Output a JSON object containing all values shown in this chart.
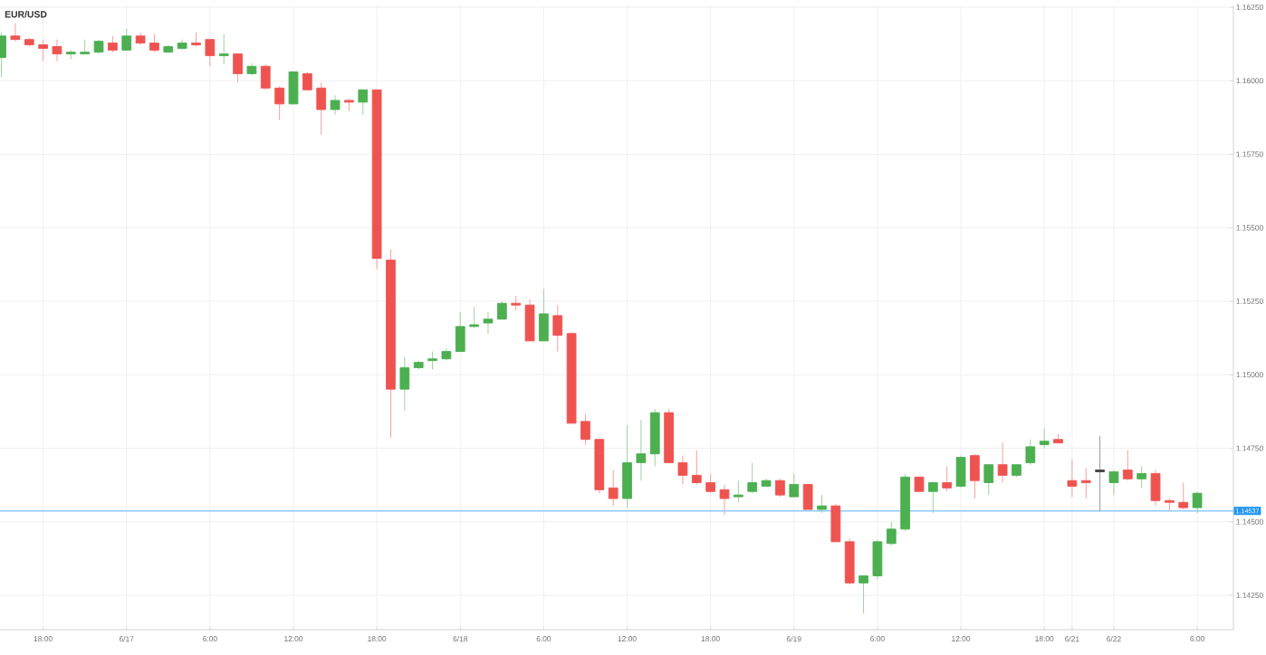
{
  "chart_data": {
    "type": "candlestick",
    "title": "EUR/USD",
    "categories": [
      null,
      null,
      null,
      "18:00",
      null,
      null,
      null,
      null,
      null,
      "6/17",
      null,
      null,
      null,
      null,
      null,
      "6:00",
      null,
      null,
      null,
      null,
      null,
      "12:00",
      null,
      null,
      null,
      null,
      null,
      "18:00",
      null,
      null,
      null,
      null,
      null,
      "6/18",
      null,
      null,
      null,
      null,
      null,
      "6:00",
      null,
      null,
      null,
      null,
      null,
      "12:00",
      null,
      null,
      null,
      null,
      null,
      "18:00",
      null,
      null,
      null,
      null,
      null,
      "6/19",
      null,
      null,
      null,
      null,
      null,
      "6:00",
      null,
      null,
      null,
      null,
      null,
      "12:00",
      null,
      null,
      null,
      null,
      null,
      "18:00",
      null,
      "6/21",
      null,
      null,
      "6/22",
      null,
      null,
      null,
      null,
      null,
      "6:00"
    ],
    "ohlc": [
      [
        1.16079,
        1.16164,
        1.16012,
        1.16152
      ],
      [
        1.16152,
        1.16195,
        1.16134,
        1.1614
      ],
      [
        1.1614,
        1.16146,
        1.16116,
        1.16122
      ],
      [
        1.16122,
        1.1614,
        1.16067,
        1.1611
      ],
      [
        1.16116,
        1.1614,
        1.16067,
        1.16091
      ],
      [
        1.16091,
        1.16104,
        1.16073,
        1.16097
      ],
      [
        1.16091,
        1.1614,
        1.16091,
        1.16097
      ],
      [
        1.16097,
        1.1614,
        1.16091,
        1.16134
      ],
      [
        1.16128,
        1.16152,
        1.16097,
        1.16104
      ],
      [
        1.16104,
        1.16177,
        1.16104,
        1.16152
      ],
      [
        1.16152,
        1.16164,
        1.16122,
        1.16128
      ],
      [
        1.16128,
        1.16158,
        1.16097,
        1.16104
      ],
      [
        1.16097,
        1.16122,
        1.16097,
        1.16116
      ],
      [
        1.1611,
        1.1614,
        1.16104,
        1.16128
      ],
      [
        1.16128,
        1.16164,
        1.16116,
        1.16122
      ],
      [
        1.1614,
        1.1614,
        1.16049,
        1.16085
      ],
      [
        1.16085,
        1.16158,
        1.16055,
        1.16091
      ],
      [
        1.16091,
        1.16091,
        1.15994,
        1.16024
      ],
      [
        1.16024,
        1.16061,
        1.16018,
        1.16049
      ],
      [
        1.16049,
        1.16055,
        1.15969,
        1.15975
      ],
      [
        1.15975,
        1.15981,
        1.15866,
        1.15921
      ],
      [
        1.15921,
        1.1603,
        1.15921,
        1.1603
      ],
      [
        1.16024,
        1.1603,
        1.15969,
        1.15969
      ],
      [
        1.15975,
        1.15994,
        1.15817,
        1.15902
      ],
      [
        1.15902,
        1.15951,
        1.15884,
        1.15933
      ],
      [
        1.15933,
        1.15939,
        1.15896,
        1.15927
      ],
      [
        1.15927,
        1.15969,
        1.15884,
        1.15969
      ],
      [
        1.15969,
        1.15969,
        1.15359,
        1.15396
      ],
      [
        1.1539,
        1.15426,
        1.14786,
        1.14951
      ],
      [
        1.14951,
        1.1506,
        1.14878,
        1.15024
      ],
      [
        1.15024,
        1.15048,
        1.15018,
        1.15042
      ],
      [
        1.15048,
        1.15079,
        1.15018,
        1.15054
      ],
      [
        1.15054,
        1.15091,
        1.15048,
        1.15079
      ],
      [
        1.15079,
        1.15213,
        1.15079,
        1.15164
      ],
      [
        1.15164,
        1.15231,
        1.15158,
        1.1517
      ],
      [
        1.15176,
        1.15213,
        1.1514,
        1.15189
      ],
      [
        1.15189,
        1.1525,
        1.15189,
        1.15243
      ],
      [
        1.15243,
        1.15268,
        1.15219,
        1.15237
      ],
      [
        1.15237,
        1.15256,
        1.15115,
        1.15115
      ],
      [
        1.15115,
        1.15292,
        1.15115,
        1.15207
      ],
      [
        1.15201,
        1.15237,
        1.15079,
        1.15134
      ],
      [
        1.1514,
        1.15146,
        1.14835,
        1.14835
      ],
      [
        1.14841,
        1.14865,
        1.14762,
        1.1478
      ],
      [
        1.1478,
        1.1478,
        1.14597,
        1.14609
      ],
      [
        1.14615,
        1.14676,
        1.14554,
        1.14579
      ],
      [
        1.14579,
        1.14829,
        1.14548,
        1.14701
      ],
      [
        1.14701,
        1.14847,
        1.1464,
        1.14731
      ],
      [
        1.14731,
        1.14884,
        1.14688,
        1.14871
      ],
      [
        1.14871,
        1.14884,
        1.14701,
        1.14701
      ],
      [
        1.14701,
        1.14725,
        1.14627,
        1.14658
      ],
      [
        1.14658,
        1.14743,
        1.14627,
        1.14633
      ],
      [
        1.14633,
        1.14664,
        1.14597,
        1.14603
      ],
      [
        1.14609,
        1.14627,
        1.14524,
        1.14579
      ],
      [
        1.14585,
        1.1464,
        1.14566,
        1.14591
      ],
      [
        1.14603,
        1.14701,
        1.14597,
        1.14633
      ],
      [
        1.14621,
        1.14646,
        1.14621,
        1.1464
      ],
      [
        1.1464,
        1.14646,
        1.14585,
        1.14591
      ],
      [
        1.14585,
        1.14664,
        1.14585,
        1.14627
      ],
      [
        1.14627,
        1.14627,
        1.14542,
        1.14542
      ],
      [
        1.14542,
        1.14591,
        1.1453,
        1.14554
      ],
      [
        1.14554,
        1.1456,
        1.14432,
        1.14432
      ],
      [
        1.14432,
        1.14444,
        1.14286,
        1.14292
      ],
      [
        1.14292,
        1.14316,
        1.14188,
        1.14316
      ],
      [
        1.14316,
        1.14438,
        1.14304,
        1.14432
      ],
      [
        1.14426,
        1.14499,
        1.1442,
        1.14475
      ],
      [
        1.14475,
        1.14664,
        1.14469,
        1.14652
      ],
      [
        1.14652,
        1.14652,
        1.14603,
        1.14603
      ],
      [
        1.14603,
        1.14633,
        1.1453,
        1.14633
      ],
      [
        1.14633,
        1.14688,
        1.14603,
        1.14615
      ],
      [
        1.14621,
        1.14725,
        1.14615,
        1.14719
      ],
      [
        1.14725,
        1.14731,
        1.14579,
        1.1464
      ],
      [
        1.14633,
        1.14694,
        1.14591,
        1.14694
      ],
      [
        1.14694,
        1.14768,
        1.14633,
        1.14658
      ],
      [
        1.14658,
        1.14694,
        1.14652,
        1.14694
      ],
      [
        1.14701,
        1.1478,
        1.14694,
        1.14755
      ],
      [
        1.14762,
        1.14817,
        1.14749,
        1.14774
      ],
      [
        1.1478,
        1.14798,
        1.14768,
        1.14768
      ],
      [
        1.1464,
        1.14713,
        1.14585,
        1.14621
      ],
      [
        1.1464,
        1.14682,
        1.14579,
        1.14633
      ],
      [
        1.1467,
        1.14792,
        1.14536,
        1.14676
      ],
      [
        1.14633,
        1.14676,
        1.14591,
        1.1467
      ],
      [
        1.14676,
        1.14743,
        1.1464,
        1.14646
      ],
      [
        1.14646,
        1.14688,
        1.14615,
        1.14664
      ],
      [
        1.14664,
        1.14676,
        1.14554,
        1.14572
      ],
      [
        1.14572,
        1.14579,
        1.14536,
        1.14566
      ],
      [
        1.14566,
        1.14633,
        1.14542,
        1.14548
      ],
      [
        1.14548,
        1.14603,
        1.1453,
        1.14597
      ]
    ],
    "colors": [
      "#4caf50",
      "#ef5350",
      "#ef5350",
      "#ef5350",
      "#ef5350",
      "#4caf50",
      "#4caf50",
      "#4caf50",
      "#ef5350",
      "#4caf50",
      "#ef5350",
      "#ef5350",
      "#4caf50",
      "#4caf50",
      "#ef5350",
      "#ef5350",
      "#4caf50",
      "#ef5350",
      "#4caf50",
      "#ef5350",
      "#ef5350",
      "#4caf50",
      "#ef5350",
      "#ef5350",
      "#4caf50",
      "#ef5350",
      "#4caf50",
      "#ef5350",
      "#ef5350",
      "#4caf50",
      "#4caf50",
      "#4caf50",
      "#4caf50",
      "#4caf50",
      "#4caf50",
      "#4caf50",
      "#4caf50",
      "#ef5350",
      "#ef5350",
      "#4caf50",
      "#ef5350",
      "#ef5350",
      "#ef5350",
      "#ef5350",
      "#ef5350",
      "#4caf50",
      "#4caf50",
      "#4caf50",
      "#ef5350",
      "#ef5350",
      "#ef5350",
      "#ef5350",
      "#ef5350",
      "#4caf50",
      "#4caf50",
      "#4caf50",
      "#ef5350",
      "#4caf50",
      "#ef5350",
      "#4caf50",
      "#ef5350",
      "#ef5350",
      "#4caf50",
      "#4caf50",
      "#4caf50",
      "#4caf50",
      "#ef5350",
      "#4caf50",
      "#ef5350",
      "#4caf50",
      "#ef5350",
      "#4caf50",
      "#ef5350",
      "#4caf50",
      "#4caf50",
      "#4caf50",
      "#ef5350",
      "#ef5350",
      "#ef5350",
      "#444444",
      "#4caf50",
      "#ef5350",
      "#4caf50",
      "#ef5350",
      "#ef5350",
      "#ef5350",
      "#4caf50"
    ],
    "ylim": [
      1.14133,
      1.16256
    ],
    "yticks": [
      {
        "value": 1.1425,
        "label": "1.14250"
      },
      {
        "value": 1.145,
        "label": "1.14500"
      },
      {
        "value": 1.1475,
        "label": "1.14750"
      },
      {
        "value": 1.15,
        "label": "1.15000"
      },
      {
        "value": 1.1525,
        "label": "1.15250"
      },
      {
        "value": 1.155,
        "label": "1.15500"
      },
      {
        "value": 1.1575,
        "label": "1.15750"
      },
      {
        "value": 1.16,
        "label": "1.16000"
      },
      {
        "value": 1.1625,
        "label": "1.16250"
      }
    ],
    "ref_lines": [
      {
        "axis": "y",
        "value": 1.14537,
        "label": "1.14537",
        "color": "#90caf9"
      }
    ],
    "grid": true
  }
}
